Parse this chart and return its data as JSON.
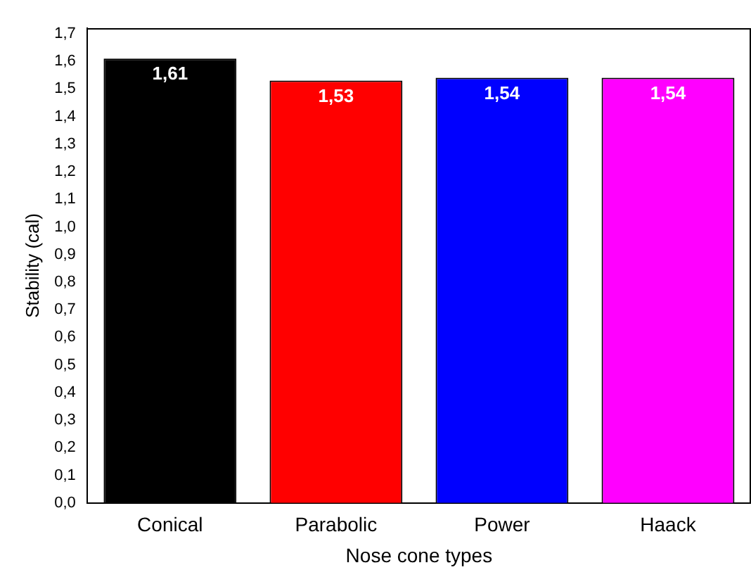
{
  "chart_data": {
    "type": "bar",
    "xlabel": "Nose cone types",
    "ylabel": "Stability (cal)",
    "categories": [
      "Conical",
      "Parabolic",
      "Power",
      "Haack"
    ],
    "values": [
      1.61,
      1.53,
      1.54,
      1.54
    ],
    "colors": [
      "#000000",
      "#ff0000",
      "#0000ff",
      "#ff00ff"
    ],
    "value_labels": [
      "1,61",
      "1,53",
      "1,54",
      "1,54"
    ],
    "ylim": [
      0,
      1.72
    ],
    "yticks": [
      {
        "value": 0,
        "label": "0,0"
      },
      {
        "value": 0.1,
        "label": "0,1"
      },
      {
        "value": 0.2,
        "label": "0,2"
      },
      {
        "value": 0.3,
        "label": "0,3"
      },
      {
        "value": 0.4,
        "label": "0,4"
      },
      {
        "value": 0.5,
        "label": "0,5"
      },
      {
        "value": 0.6,
        "label": "0,6"
      },
      {
        "value": 0.7,
        "label": "0,7"
      },
      {
        "value": 0.8,
        "label": "0,8"
      },
      {
        "value": 0.9,
        "label": "0,9"
      },
      {
        "value": 1.0,
        "label": "1,0"
      },
      {
        "value": 1.1,
        "label": "1,1"
      },
      {
        "value": 1.2,
        "label": "1,2"
      },
      {
        "value": 1.3,
        "label": "1,3"
      },
      {
        "value": 1.4,
        "label": "1,4"
      },
      {
        "value": 1.5,
        "label": "1,5"
      },
      {
        "value": 1.6,
        "label": "1,6"
      },
      {
        "value": 1.7,
        "label": "1,7"
      }
    ],
    "grid": false,
    "legend": false
  }
}
